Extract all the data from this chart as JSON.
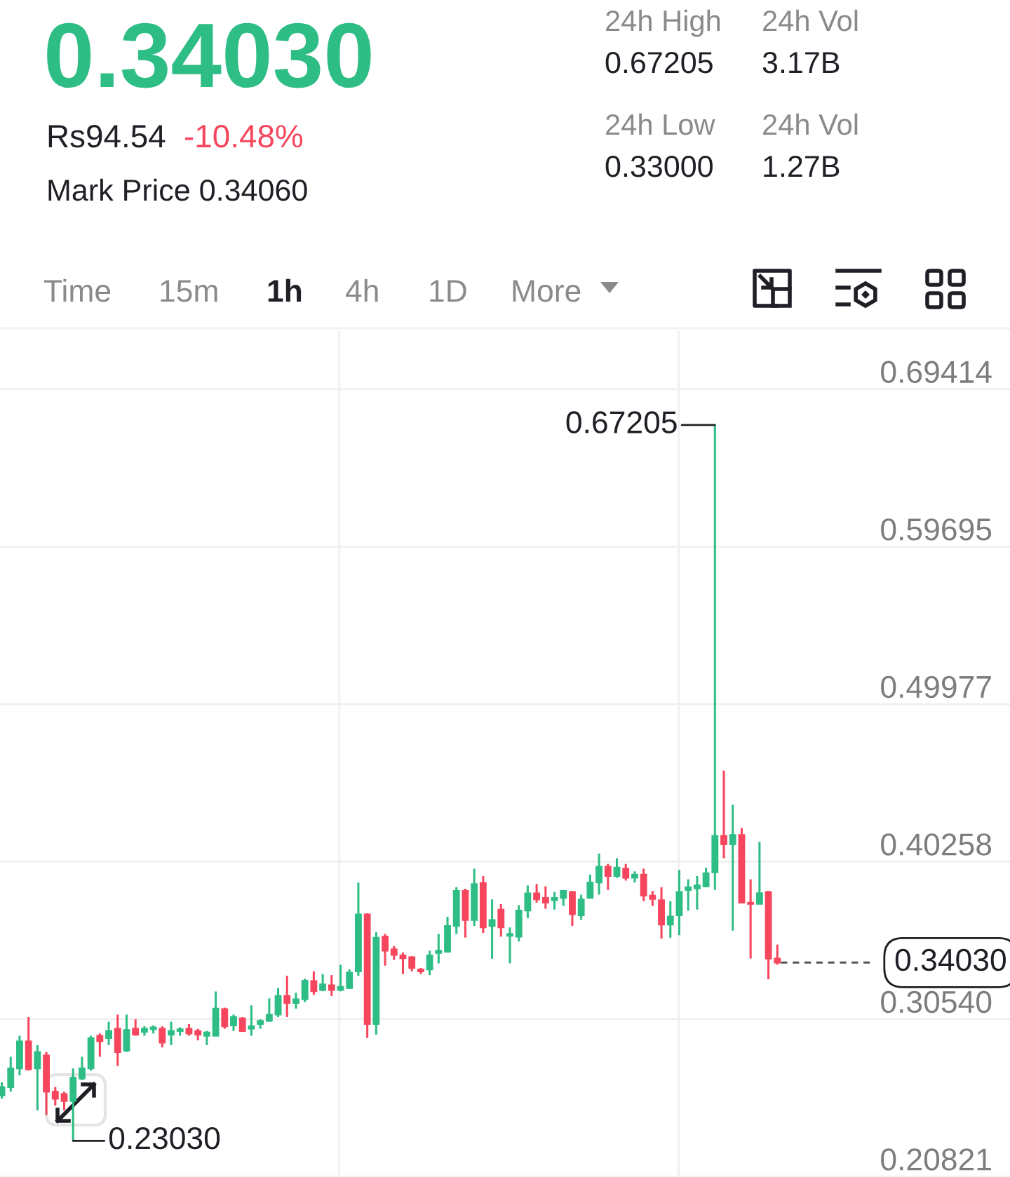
{
  "chart_data": {
    "type": "candlestick",
    "title": "0.34030",
    "categories": [
      null,
      null,
      null,
      null,
      null,
      null,
      null,
      null,
      null,
      null,
      null,
      null,
      null,
      null,
      null,
      null,
      null,
      null,
      null,
      null,
      null,
      null,
      null,
      null,
      null,
      null,
      null,
      null,
      null,
      null,
      null,
      null,
      null,
      null,
      null,
      null,
      null,
      null,
      null,
      null,
      null,
      null,
      null,
      null,
      null,
      null,
      null,
      null,
      null,
      null,
      null,
      null,
      null,
      null,
      null,
      null,
      null,
      null,
      null,
      null,
      null,
      null,
      null,
      null,
      null,
      null,
      null,
      null,
      null,
      null,
      null,
      null,
      null,
      null,
      null,
      null,
      null,
      null,
      null,
      null,
      null,
      null,
      null,
      null,
      null,
      null,
      null,
      null
    ],
    "ohlc": [
      [
        0.2583,
        0.2664,
        0.2563,
        0.2635
      ],
      [
        0.2635,
        0.2822,
        0.2606,
        0.275
      ],
      [
        0.275,
        0.2952,
        0.2707,
        0.2917
      ],
      [
        0.2917,
        0.3067,
        0.2736,
        0.2745
      ],
      [
        0.275,
        0.2894,
        0.2491,
        0.2851
      ],
      [
        0.2831,
        0.2851,
        0.2462,
        0.2606
      ],
      [
        0.2606,
        0.2635,
        0.252,
        0.2563
      ],
      [
        0.2592,
        0.2606,
        0.2491,
        0.2549
      ],
      [
        0.2549,
        0.275,
        0.2303,
        0.2693
      ],
      [
        0.2687,
        0.2822,
        0.2678,
        0.275
      ],
      [
        0.275,
        0.2952,
        0.2736,
        0.2937
      ],
      [
        0.2952,
        0.2966,
        0.2822,
        0.2917
      ],
      [
        0.2937,
        0.3038,
        0.2894,
        0.2981
      ],
      [
        0.2995,
        0.3082,
        0.2765,
        0.2851
      ],
      [
        0.286,
        0.3082,
        0.2851,
        0.2987
      ],
      [
        0.2995,
        0.3053,
        0.2952,
        0.2958
      ],
      [
        0.2975,
        0.301,
        0.2952,
        0.2995
      ],
      [
        0.2992,
        0.3015,
        0.2966,
        0.3004
      ],
      [
        0.2995,
        0.301,
        0.288,
        0.2909
      ],
      [
        0.2958,
        0.3038,
        0.2894,
        0.2981
      ],
      [
        0.2981,
        0.3004,
        0.2952,
        0.2992
      ],
      [
        0.2995,
        0.3024,
        0.2952,
        0.2966
      ],
      [
        0.2981,
        0.2995,
        0.2923,
        0.2958
      ],
      [
        0.2952,
        0.2981,
        0.2894,
        0.2972
      ],
      [
        0.2952,
        0.3225,
        0.2952,
        0.3119
      ],
      [
        0.3116,
        0.3125,
        0.2995,
        0.301
      ],
      [
        0.3015,
        0.3082,
        0.2981,
        0.3067
      ],
      [
        0.3059,
        0.3067,
        0.2975,
        0.2981
      ],
      [
        0.2995,
        0.3139,
        0.2952,
        0.301
      ],
      [
        0.3024,
        0.3053,
        0.2995,
        0.3044
      ],
      [
        0.3044,
        0.3182,
        0.3038,
        0.3082
      ],
      [
        0.3082,
        0.3246,
        0.3067,
        0.3197
      ],
      [
        0.3197,
        0.3321,
        0.3067,
        0.3154
      ],
      [
        0.3154,
        0.3217,
        0.3119,
        0.3177
      ],
      [
        0.3177,
        0.3303,
        0.3159,
        0.3292
      ],
      [
        0.3289,
        0.3349,
        0.3205,
        0.3226
      ],
      [
        0.3234,
        0.3332,
        0.3226,
        0.3269
      ],
      [
        0.3263,
        0.3326,
        0.3197,
        0.3234
      ],
      [
        0.3234,
        0.339,
        0.3226,
        0.3254
      ],
      [
        0.3246,
        0.3361,
        0.324,
        0.3341
      ],
      [
        0.3349,
        0.3897,
        0.3321,
        0.3701
      ],
      [
        0.3701,
        0.3707,
        0.2938,
        0.3024
      ],
      [
        0.3024,
        0.3591,
        0.2958,
        0.3557
      ],
      [
        0.3563,
        0.358,
        0.3384,
        0.3476
      ],
      [
        0.3485,
        0.3505,
        0.3419,
        0.345
      ],
      [
        0.3447,
        0.3465,
        0.3332,
        0.343
      ],
      [
        0.3436,
        0.3442,
        0.3349,
        0.337
      ],
      [
        0.3361,
        0.337,
        0.3332,
        0.3349
      ],
      [
        0.3361,
        0.3476,
        0.3326,
        0.3447
      ],
      [
        0.3462,
        0.358,
        0.3398,
        0.3476
      ],
      [
        0.347,
        0.3686,
        0.3465,
        0.3629
      ],
      [
        0.3629,
        0.3868,
        0.358,
        0.3845
      ],
      [
        0.3845,
        0.3859,
        0.3557,
        0.3666
      ],
      [
        0.3666,
        0.3983,
        0.3629,
        0.3888
      ],
      [
        0.3894,
        0.3937,
        0.3586,
        0.362
      ],
      [
        0.3629,
        0.3793,
        0.3427,
        0.3666
      ],
      [
        0.373,
        0.3764,
        0.3563,
        0.362
      ],
      [
        0.3568,
        0.362,
        0.3398,
        0.358
      ],
      [
        0.3563,
        0.3758,
        0.3534,
        0.3724
      ],
      [
        0.3724,
        0.3879,
        0.3678,
        0.383
      ],
      [
        0.383,
        0.3888,
        0.3773,
        0.3793
      ],
      [
        0.3802,
        0.3874,
        0.3735,
        0.3773
      ],
      [
        0.3788,
        0.3839,
        0.373,
        0.3802
      ],
      [
        0.3802,
        0.3851,
        0.3753,
        0.3845
      ],
      [
        0.3839,
        0.3845,
        0.3629,
        0.3701
      ],
      [
        0.3695,
        0.3822,
        0.3667,
        0.3793
      ],
      [
        0.3802,
        0.3946,
        0.3802,
        0.3897
      ],
      [
        0.3897,
        0.4076,
        0.3822,
        0.3995
      ],
      [
        0.3995,
        0.4012,
        0.3851,
        0.3937
      ],
      [
        0.3937,
        0.4047,
        0.3926,
        0.3989
      ],
      [
        0.3983,
        0.4012,
        0.3909,
        0.3926
      ],
      [
        0.3926,
        0.3966,
        0.3897,
        0.3946
      ],
      [
        0.3946,
        0.3983,
        0.3782,
        0.3816
      ],
      [
        0.3816,
        0.3845,
        0.3753,
        0.3796
      ],
      [
        0.3788,
        0.3868,
        0.3551,
        0.3638
      ],
      [
        0.3638,
        0.3782,
        0.3557,
        0.3687
      ],
      [
        0.3695,
        0.3975,
        0.3572,
        0.3839
      ],
      [
        0.3851,
        0.3917,
        0.3724,
        0.3868
      ],
      [
        0.386,
        0.3937,
        0.373,
        0.388
      ],
      [
        0.3874,
        0.3989,
        0.3868,
        0.3955
      ],
      [
        0.396,
        0.67205,
        0.3851,
        0.4185
      ],
      [
        0.4185,
        0.4588,
        0.4047,
        0.4133
      ],
      [
        0.4133,
        0.4378,
        0.36,
        0.4191
      ],
      [
        0.4191,
        0.4234,
        0.3773,
        0.3773
      ],
      [
        0.3773,
        0.3917,
        0.3428,
        0.3765
      ],
      [
        0.3765,
        0.4148,
        0.3765,
        0.3831
      ],
      [
        0.3839,
        0.3845,
        0.33,
        0.3428
      ],
      [
        0.3428,
        0.3514,
        0.339,
        0.3403
      ]
    ],
    "colors": [
      "#2ebd85",
      "#2ebd85",
      "#2ebd85",
      "#f6465d",
      "#2ebd85",
      "#f6465d",
      "#f6465d",
      "#f6465d",
      "#2ebd85",
      "#2ebd85",
      "#2ebd85",
      "#f6465d",
      "#2ebd85",
      "#f6465d",
      "#2ebd85",
      "#f6465d",
      "#2ebd85",
      "#2ebd85",
      "#f6465d",
      "#2ebd85",
      "#2ebd85",
      "#f6465d",
      "#f6465d",
      "#2ebd85",
      "#2ebd85",
      "#f6465d",
      "#2ebd85",
      "#f6465d",
      "#2ebd85",
      "#2ebd85",
      "#2ebd85",
      "#2ebd85",
      "#f6465d",
      "#2ebd85",
      "#2ebd85",
      "#f6465d",
      "#2ebd85",
      "#f6465d",
      "#2ebd85",
      "#2ebd85",
      "#2ebd85",
      "#f6465d",
      "#2ebd85",
      "#f6465d",
      "#f6465d",
      "#f6465d",
      "#f6465d",
      "#f6465d",
      "#2ebd85",
      "#2ebd85",
      "#2ebd85",
      "#2ebd85",
      "#f6465d",
      "#2ebd85",
      "#f6465d",
      "#2ebd85",
      "#f6465d",
      "#2ebd85",
      "#2ebd85",
      "#2ebd85",
      "#f6465d",
      "#f6465d",
      "#2ebd85",
      "#2ebd85",
      "#f6465d",
      "#2ebd85",
      "#2ebd85",
      "#2ebd85",
      "#f6465d",
      "#2ebd85",
      "#f6465d",
      "#2ebd85",
      "#f6465d",
      "#f6465d",
      "#f6465d",
      "#2ebd85",
      "#2ebd85",
      "#2ebd85",
      "#2ebd85",
      "#2ebd85",
      "#2ebd85",
      "#f6465d",
      "#2ebd85",
      "#f6465d",
      "#f6465d",
      "#2ebd85",
      "#f6465d",
      "#f6465d"
    ],
    "ylim": [
      0.208,
      0.73
    ],
    "yticks": [
      0.69414,
      0.59695,
      0.49977,
      0.40258,
      {
        "value": 0.3054,
        "label": "0.30540"
      },
      0.20821
    ],
    "grid": "y",
    "tick_labels": "y",
    "ref_lines": [
      {
        "axis": "y",
        "value": 0.3403,
        "label": "0.34030",
        "line_style": "dashed",
        "color": "#555555"
      }
    ],
    "annotations": [
      "Rs94.54",
      "-10.48%",
      "Mark Price 0.34060",
      "24h High",
      "0.67205",
      "24h Vol",
      "3.17B",
      "24h Low",
      "0.33000",
      "24h Vol",
      "1.27B",
      "Time",
      "15m",
      "1h",
      "4h",
      "1D",
      "More",
      "0.67205",
      "0.23030"
    ]
  }
}
